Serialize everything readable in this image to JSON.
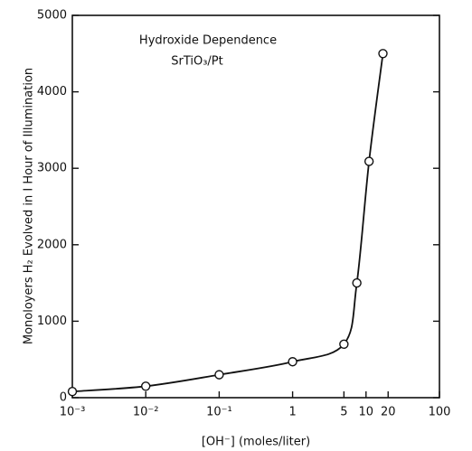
{
  "chart_data": {
    "type": "line",
    "annotation": [
      "Hydroxide Dependence",
      "SrTiO₃/Pt"
    ],
    "x_label": "[OH⁻] (moles/liter)",
    "y_label": "Monoloyers H₂ Evolved in I Hour of Illumination",
    "x": [
      0.001,
      0.01,
      0.1,
      1,
      5,
      7.5,
      11,
      17
    ],
    "series": [
      {
        "name": null,
        "color": "#111111",
        "values": [
          80,
          150,
          300,
          470,
          700,
          1500,
          3090,
          4500
        ]
      }
    ],
    "log_x": true,
    "xlim": [
      0.001,
      100
    ],
    "xticks": [
      {
        "value": 0.001,
        "label": "10⁻³"
      },
      {
        "value": 0.01,
        "label": "10⁻²"
      },
      {
        "value": 0.1,
        "label": "10⁻¹"
      },
      1,
      5,
      10,
      20,
      100
    ],
    "ylim": [
      0,
      5000
    ],
    "yticks": [
      0,
      1000,
      2000,
      3000,
      4000,
      5000
    ]
  }
}
